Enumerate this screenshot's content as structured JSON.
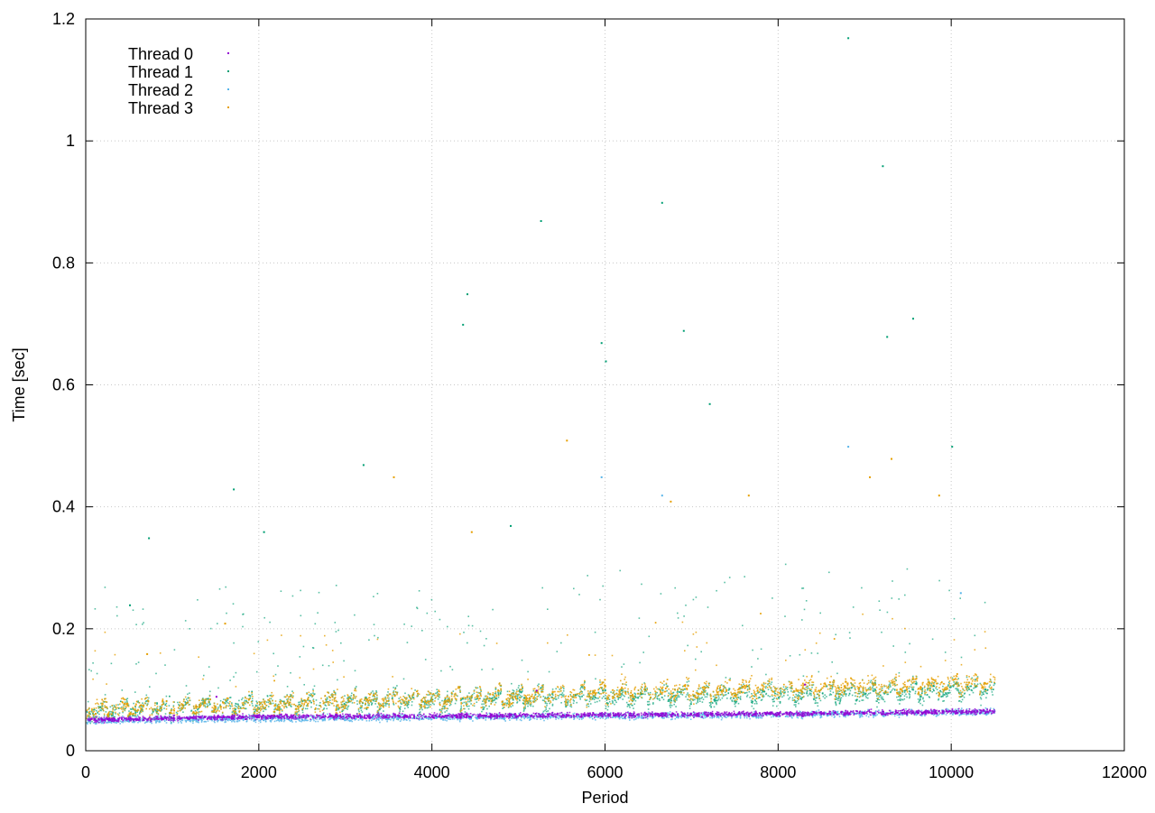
{
  "chart_data": {
    "type": "scatter",
    "xlabel": "Period",
    "ylabel": "Time [sec]",
    "xlim": [
      0,
      12000
    ],
    "ylim": [
      0,
      1.2
    ],
    "x_ticks": [
      0,
      2000,
      4000,
      6000,
      8000,
      10000,
      12000
    ],
    "y_ticks": [
      0,
      0.2,
      0.4,
      0.6,
      0.8,
      1,
      1.2
    ],
    "x_tick_labels": [
      "0",
      "2000",
      "4000",
      "6000",
      "8000",
      "10000",
      "12000"
    ],
    "y_tick_labels": [
      "0",
      "0.2",
      "0.4",
      "0.6",
      "0.8",
      "1",
      "1.2"
    ],
    "grid": true,
    "legend_position": "top-left",
    "x_range_of_data": [
      0,
      10500
    ],
    "series": [
      {
        "name": "Thread 0",
        "color": "#9400d3",
        "baseline": [
          [
            0,
            0.052
          ],
          [
            2000,
            0.057
          ],
          [
            4000,
            0.058
          ],
          [
            6000,
            0.06
          ],
          [
            8000,
            0.062
          ],
          [
            10000,
            0.065
          ],
          [
            10500,
            0.066
          ]
        ],
        "spread": 0.006,
        "outliers": [
          [
            1500,
            0.09
          ],
          [
            5200,
            0.1
          ],
          [
            8300,
            0.11
          ]
        ]
      },
      {
        "name": "Thread 1",
        "color": "#009e73",
        "baseline": [
          [
            0,
            0.055
          ],
          [
            2000,
            0.065
          ],
          [
            4000,
            0.072
          ],
          [
            6000,
            0.078
          ],
          [
            8000,
            0.082
          ],
          [
            10000,
            0.088
          ],
          [
            10500,
            0.09
          ]
        ],
        "spread": 0.02,
        "outliers": [
          [
            500,
            0.24
          ],
          [
            720,
            0.35
          ],
          [
            1700,
            0.43
          ],
          [
            2050,
            0.36
          ],
          [
            3200,
            0.47
          ],
          [
            4350,
            0.7
          ],
          [
            4400,
            0.75
          ],
          [
            4900,
            0.37
          ],
          [
            5250,
            0.87
          ],
          [
            5950,
            0.67
          ],
          [
            6000,
            0.64
          ],
          [
            6650,
            0.9
          ],
          [
            6900,
            0.69
          ],
          [
            7200,
            0.57
          ],
          [
            8800,
            1.17
          ],
          [
            9200,
            0.96
          ],
          [
            9250,
            0.68
          ],
          [
            9550,
            0.71
          ],
          [
            10000,
            0.5
          ]
        ]
      },
      {
        "name": "Thread 2",
        "color": "#56b4e9",
        "baseline": [
          [
            0,
            0.05
          ],
          [
            2000,
            0.054
          ],
          [
            4000,
            0.056
          ],
          [
            6000,
            0.058
          ],
          [
            8000,
            0.06
          ],
          [
            10000,
            0.064
          ],
          [
            10500,
            0.065
          ]
        ],
        "spread": 0.008,
        "outliers": [
          [
            5950,
            0.45
          ],
          [
            6650,
            0.42
          ],
          [
            8800,
            0.5
          ],
          [
            10100,
            0.26
          ]
        ]
      },
      {
        "name": "Thread 3",
        "color": "#e69f00",
        "baseline": [
          [
            0,
            0.058
          ],
          [
            2000,
            0.066
          ],
          [
            4000,
            0.075
          ],
          [
            6000,
            0.085
          ],
          [
            8000,
            0.092
          ],
          [
            10000,
            0.1
          ],
          [
            10500,
            0.102
          ]
        ],
        "spread": 0.018,
        "outliers": [
          [
            700,
            0.16
          ],
          [
            1600,
            0.21
          ],
          [
            3550,
            0.45
          ],
          [
            4450,
            0.36
          ],
          [
            5550,
            0.51
          ],
          [
            6750,
            0.41
          ],
          [
            7650,
            0.42
          ],
          [
            9050,
            0.45
          ],
          [
            9300,
            0.48
          ],
          [
            9850,
            0.42
          ]
        ]
      }
    ]
  }
}
